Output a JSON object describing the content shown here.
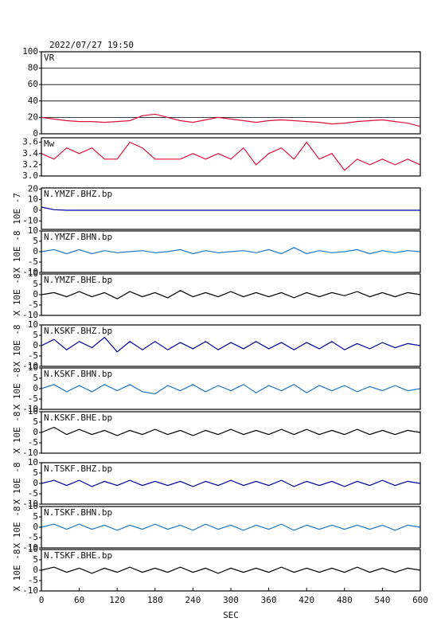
{
  "title": "2022/07/27 19:50",
  "xlabel": "SEC",
  "chart_data": [
    {
      "type": "line",
      "title": "VR",
      "color": "#e0103a",
      "grid": true,
      "x": [
        0,
        20,
        40,
        60,
        80,
        100,
        120,
        140,
        160,
        180,
        200,
        220,
        240,
        260,
        280,
        300,
        320,
        340,
        360,
        380,
        400,
        420,
        440,
        460,
        480,
        500,
        520,
        540,
        560,
        580,
        600
      ],
      "values": [
        20,
        18,
        16,
        15,
        15,
        14,
        15,
        16,
        22,
        24,
        20,
        16,
        14,
        17,
        20,
        18,
        16,
        14,
        16,
        17,
        16,
        15,
        14,
        12,
        13,
        15,
        16,
        17,
        15,
        13,
        9
      ],
      "ylim": [
        0,
        100
      ],
      "yticks": [
        0,
        20,
        40,
        60,
        80,
        100
      ]
    },
    {
      "type": "line",
      "title": "Mw",
      "color": "#e0103a",
      "x": [
        0,
        20,
        40,
        60,
        80,
        100,
        120,
        140,
        160,
        180,
        200,
        220,
        240,
        260,
        280,
        300,
        320,
        340,
        360,
        380,
        400,
        420,
        440,
        460,
        480,
        500,
        520,
        540,
        560,
        580,
        600
      ],
      "values": [
        3.4,
        3.3,
        3.5,
        3.4,
        3.5,
        3.3,
        3.3,
        3.6,
        3.5,
        3.3,
        3.3,
        3.3,
        3.4,
        3.3,
        3.4,
        3.3,
        3.5,
        3.2,
        3.4,
        3.5,
        3.3,
        3.6,
        3.3,
        3.4,
        3.1,
        3.3,
        3.2,
        3.3,
        3.2,
        3.3,
        3.2
      ],
      "ylim": [
        3.0,
        3.68
      ],
      "yticks": [
        {
          "value": 3,
          "label": "3.0"
        },
        3.2,
        3.4,
        3.6
      ]
    },
    {
      "type": "line",
      "title": "N.YMZF.BHZ.bp",
      "ylabel": "10E -7",
      "color": "#0000a0",
      "x": [
        0,
        20,
        40,
        60,
        80,
        100,
        120,
        140,
        160,
        180,
        200,
        220,
        240,
        260,
        280,
        300,
        320,
        340,
        360,
        380,
        400,
        420,
        440,
        460,
        480,
        500,
        520,
        540,
        560,
        580,
        600
      ],
      "values": [
        3,
        0.5,
        0,
        0,
        0,
        0,
        0,
        0,
        0,
        0,
        0,
        0,
        0,
        0,
        0,
        0,
        0,
        0,
        0,
        0,
        0,
        0,
        0,
        0,
        0,
        0,
        0,
        0,
        0,
        0,
        0
      ],
      "ylim": [
        -18,
        21
      ],
      "yticks": [
        -10,
        0,
        10,
        20
      ]
    },
    {
      "type": "line",
      "title": "N.YMZF.BHN.bp",
      "ylabel": "X 10E -8",
      "color": "#1e78c8",
      "x": [
        0,
        20,
        40,
        60,
        80,
        100,
        120,
        140,
        160,
        180,
        200,
        220,
        240,
        260,
        280,
        300,
        320,
        340,
        360,
        380,
        400,
        420,
        440,
        460,
        480,
        500,
        520,
        540,
        560,
        580,
        600
      ],
      "values": [
        0,
        1,
        -1,
        1,
        -1,
        0.5,
        -0.5,
        0,
        0.5,
        -0.5,
        0,
        1,
        -1,
        0.5,
        -0.5,
        0,
        0.5,
        -0.5,
        1,
        -1,
        2,
        -1,
        0.5,
        -0.5,
        0,
        1,
        -1,
        0.5,
        -0.5,
        0.5,
        0
      ],
      "ylim": [
        -10,
        10
      ],
      "yticks": [
        -10,
        -5,
        0,
        5,
        10
      ]
    },
    {
      "type": "line",
      "title": "N.YMZF.BHE.bp",
      "ylabel": "X 10E -8",
      "color": "#000000",
      "x": [
        0,
        20,
        40,
        60,
        80,
        100,
        120,
        140,
        160,
        180,
        200,
        220,
        240,
        260,
        280,
        300,
        320,
        340,
        360,
        380,
        400,
        420,
        440,
        460,
        480,
        500,
        520,
        540,
        560,
        580,
        600
      ],
      "values": [
        0,
        1,
        -1,
        1.5,
        -1,
        1,
        -2,
        1.5,
        -1,
        1,
        -1.5,
        2,
        -1,
        1,
        -1,
        1.5,
        -1,
        1,
        -1,
        1,
        -1.5,
        1,
        -1,
        1,
        -0.5,
        1.5,
        -1,
        1,
        -1,
        1,
        0
      ],
      "ylim": [
        -10,
        10
      ],
      "yticks": [
        -10,
        -5,
        0,
        5,
        10
      ]
    },
    {
      "type": "line",
      "title": "N.KSKF.BHZ.bp",
      "ylabel": "X 10E -8",
      "color": "#0000a0",
      "x": [
        0,
        20,
        40,
        60,
        80,
        100,
        120,
        140,
        160,
        180,
        200,
        220,
        240,
        260,
        280,
        300,
        320,
        340,
        360,
        380,
        400,
        420,
        440,
        460,
        480,
        500,
        520,
        540,
        560,
        580,
        600
      ],
      "values": [
        0,
        3,
        -2,
        2,
        -1,
        4,
        -3,
        2,
        -2,
        2,
        -2,
        1.5,
        -1.5,
        2,
        -2,
        1.5,
        -1.5,
        2,
        -1.5,
        1.5,
        -2,
        1.5,
        -1.5,
        2,
        -2,
        1,
        -1.5,
        1.5,
        -1,
        1,
        0
      ],
      "ylim": [
        -10,
        10
      ],
      "yticks": [
        -10,
        -5,
        0,
        5,
        10
      ]
    },
    {
      "type": "line",
      "title": "N.KSKF.BHN.bp",
      "ylabel": "X 10E -8",
      "color": "#1e78c8",
      "x": [
        0,
        20,
        40,
        60,
        80,
        100,
        120,
        140,
        160,
        180,
        200,
        220,
        240,
        260,
        280,
        300,
        320,
        340,
        360,
        380,
        400,
        420,
        440,
        460,
        480,
        500,
        520,
        540,
        560,
        580,
        600
      ],
      "values": [
        0,
        2,
        -1.5,
        1.5,
        -1.5,
        2,
        -1,
        2,
        -1.5,
        -2.5,
        1.5,
        -1,
        2,
        -1.5,
        1.5,
        -1,
        2,
        -2,
        1.5,
        -1,
        2,
        -2,
        1.5,
        -1,
        1.5,
        -1.5,
        1,
        -1,
        1.5,
        -1,
        0
      ],
      "ylim": [
        -10,
        10
      ],
      "yticks": [
        -10,
        -5,
        0,
        5,
        10
      ]
    },
    {
      "type": "line",
      "title": "N.KSKF.BHE.bp",
      "ylabel": "X 10E -8",
      "color": "#000000",
      "x": [
        0,
        20,
        40,
        60,
        80,
        100,
        120,
        140,
        160,
        180,
        200,
        220,
        240,
        260,
        280,
        300,
        320,
        340,
        360,
        380,
        400,
        420,
        440,
        460,
        480,
        500,
        520,
        540,
        560,
        580,
        600
      ],
      "values": [
        0,
        2.5,
        -1,
        1.5,
        -1,
        1,
        -1.5,
        1,
        -1,
        1.5,
        -1,
        1,
        -1.5,
        1,
        -1,
        1.5,
        -1,
        1,
        -1,
        1.5,
        -1,
        1.5,
        -1,
        1,
        -1,
        1.5,
        -1,
        1,
        -1,
        1,
        0
      ],
      "ylim": [
        -10,
        10
      ],
      "yticks": [
        -10,
        -5,
        0,
        5,
        10
      ]
    },
    {
      "type": "line",
      "title": "N.TSKF.BHZ.bp",
      "ylabel": "X 10E -8",
      "color": "#0000a0",
      "x": [
        0,
        20,
        40,
        60,
        80,
        100,
        120,
        140,
        160,
        180,
        200,
        220,
        240,
        260,
        280,
        300,
        320,
        340,
        360,
        380,
        400,
        420,
        440,
        460,
        480,
        500,
        520,
        540,
        560,
        580,
        600
      ],
      "values": [
        0,
        1.5,
        -1,
        1.5,
        -1.5,
        1,
        -1,
        1.5,
        -1,
        1,
        -1,
        1,
        -1.5,
        1,
        -1,
        1.5,
        -1,
        1,
        -1,
        1.5,
        -1.5,
        1,
        -1,
        1,
        -1.5,
        1,
        -1,
        1.5,
        -1,
        1,
        0
      ],
      "ylim": [
        -10,
        10
      ],
      "yticks": [
        -10,
        -5,
        0,
        5,
        10
      ]
    },
    {
      "type": "line",
      "title": "N.TSKF.BHN.bp",
      "ylabel": "X 10E -8",
      "color": "#1e78c8",
      "x": [
        0,
        20,
        40,
        60,
        80,
        100,
        120,
        140,
        160,
        180,
        200,
        220,
        240,
        260,
        280,
        300,
        320,
        340,
        360,
        380,
        400,
        420,
        440,
        460,
        480,
        500,
        520,
        540,
        560,
        580,
        600
      ],
      "values": [
        0,
        1.5,
        -1,
        1.5,
        -1,
        1,
        -1.5,
        1,
        -1,
        1.5,
        -1,
        1,
        -1.5,
        1.5,
        -1,
        1,
        -1.5,
        1,
        -1,
        1.5,
        -1.5,
        1,
        -1,
        1,
        -1,
        1,
        -1,
        1,
        -1.5,
        1,
        0
      ],
      "ylim": [
        -10,
        10
      ],
      "yticks": [
        -10,
        -5,
        0,
        5,
        10
      ]
    },
    {
      "type": "line",
      "title": "N.TSKF.BHE.bp",
      "ylabel": "X 10E -8",
      "color": "#000000",
      "x": [
        0,
        20,
        40,
        60,
        80,
        100,
        120,
        140,
        160,
        180,
        200,
        220,
        240,
        260,
        280,
        300,
        320,
        340,
        360,
        380,
        400,
        420,
        440,
        460,
        480,
        500,
        520,
        540,
        560,
        580,
        600
      ],
      "values": [
        0,
        1.5,
        -1,
        1,
        -1.5,
        1,
        -1,
        1.5,
        -1,
        1,
        -1,
        1.5,
        -1,
        1,
        -1.5,
        1,
        -1,
        1,
        -1,
        1.5,
        -1,
        1,
        -1,
        1,
        -1,
        1.5,
        -1,
        1,
        -1,
        1,
        0
      ],
      "ylim": [
        -10,
        10
      ],
      "yticks": [
        -10,
        -5,
        0,
        5,
        10
      ],
      "xlim": [
        0,
        600
      ],
      "xticks": [
        0,
        60,
        120,
        180,
        240,
        300,
        360,
        420,
        480,
        540,
        600
      ]
    }
  ]
}
